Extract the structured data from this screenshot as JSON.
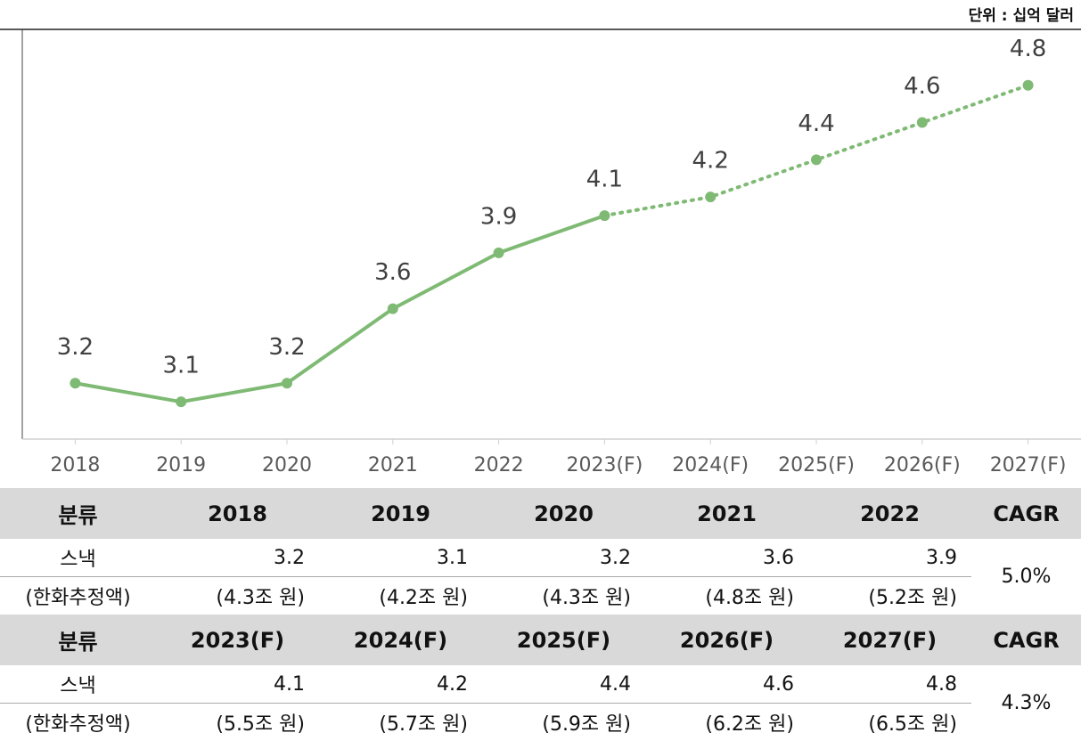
{
  "chart_data": {
    "type": "line",
    "unit": "단위 : 십억 달러",
    "categories": [
      "2018",
      "2019",
      "2020",
      "2021",
      "2022",
      "2023(F)",
      "2024(F)",
      "2025(F)",
      "2026(F)",
      "2027(F)"
    ],
    "values": [
      3.2,
      3.1,
      3.2,
      3.6,
      3.9,
      4.1,
      4.2,
      4.4,
      4.6,
      4.8
    ],
    "color": "#7fba74",
    "dotted_from_index": 5,
    "ylim": [
      2.9,
      5.1
    ],
    "grid": false
  },
  "table": {
    "blocks": [
      {
        "header": [
          "분류",
          "2018",
          "2019",
          "2020",
          "2021",
          "2022",
          "CAGR"
        ],
        "rows": [
          [
            "스낵",
            3.2,
            3.1,
            3.2,
            3.6,
            3.9
          ],
          [
            "(한화추정액)",
            "(4.3조 원)",
            "(4.2조 원)",
            "(4.3조 원)",
            "(4.8조 원)",
            "(5.2조 원)"
          ]
        ],
        "cagr": "5.0%"
      },
      {
        "header": [
          "분류",
          "2023(F)",
          "2024(F)",
          "2025(F)",
          "2026(F)",
          "2027(F)",
          "CAGR"
        ],
        "rows": [
          [
            "스낵",
            4.1,
            4.2,
            4.4,
            4.6,
            4.8
          ],
          [
            "(한화추정액)",
            "(5.5조 원)",
            "(5.7조 원)",
            "(5.9조 원)",
            "(6.2조 원)",
            "(6.5조 원)"
          ]
        ],
        "cagr": "4.3%"
      }
    ]
  }
}
